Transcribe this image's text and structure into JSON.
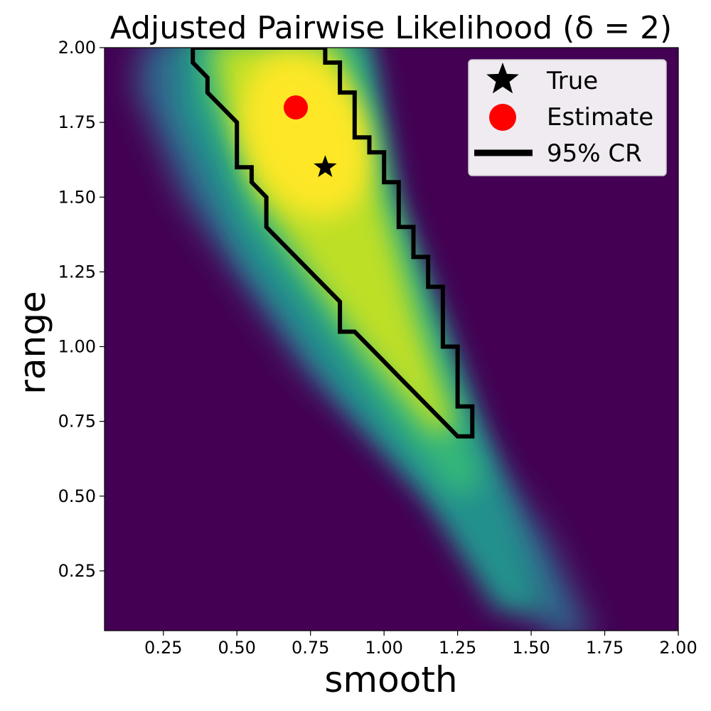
{
  "chart_data": {
    "type": "heatmap",
    "title": "Adjusted Pairwise Likelihood (δ = 2)",
    "xlabel": "smooth",
    "ylabel": "range",
    "xlim": [
      0.05,
      2.0
    ],
    "ylim": [
      0.05,
      2.0
    ],
    "xticks": [
      0.25,
      0.5,
      0.75,
      1.0,
      1.25,
      1.5,
      1.75,
      2.0
    ],
    "xtick_labels": [
      "0.25",
      "0.50",
      "0.75",
      "1.00",
      "1.25",
      "1.50",
      "1.75",
      "2.00"
    ],
    "yticks": [
      0.25,
      0.5,
      0.75,
      1.0,
      1.25,
      1.5,
      1.75,
      2.0
    ],
    "ytick_labels": [
      "0.25",
      "0.50",
      "0.75",
      "1.00",
      "1.25",
      "1.50",
      "1.75",
      "2.00"
    ],
    "colormap": "viridis",
    "background_color": "#440154",
    "true_point": {
      "label": "True",
      "x": 0.8,
      "y": 1.6,
      "marker": "star",
      "color": "#000000"
    },
    "estimate_point": {
      "label": "Estimate",
      "x": 0.7,
      "y": 1.8,
      "marker": "circle",
      "color": "#ff0000"
    },
    "credible_region": {
      "label": "95% CR",
      "color": "#000000",
      "polygon": [
        [
          0.45,
          2.0
        ],
        [
          0.8,
          2.0
        ],
        [
          0.8,
          1.95
        ],
        [
          0.85,
          1.95
        ],
        [
          0.85,
          1.85
        ],
        [
          0.9,
          1.85
        ],
        [
          0.9,
          1.7
        ],
        [
          0.95,
          1.7
        ],
        [
          0.95,
          1.65
        ],
        [
          1.0,
          1.65
        ],
        [
          1.0,
          1.55
        ],
        [
          1.05,
          1.55
        ],
        [
          1.05,
          1.4
        ],
        [
          1.1,
          1.4
        ],
        [
          1.1,
          1.3
        ],
        [
          1.15,
          1.3
        ],
        [
          1.15,
          1.2
        ],
        [
          1.2,
          1.2
        ],
        [
          1.2,
          1.0
        ],
        [
          1.25,
          1.0
        ],
        [
          1.25,
          0.8
        ],
        [
          1.3,
          0.8
        ],
        [
          1.3,
          0.7
        ],
        [
          1.25,
          0.7
        ],
        [
          1.2,
          0.75
        ],
        [
          1.15,
          0.8
        ],
        [
          1.1,
          0.85
        ],
        [
          1.05,
          0.9
        ],
        [
          1.0,
          0.95
        ],
        [
          0.95,
          1.0
        ],
        [
          0.9,
          1.05
        ],
        [
          0.85,
          1.05
        ],
        [
          0.85,
          1.15
        ],
        [
          0.8,
          1.2
        ],
        [
          0.75,
          1.25
        ],
        [
          0.7,
          1.3
        ],
        [
          0.65,
          1.35
        ],
        [
          0.6,
          1.4
        ],
        [
          0.6,
          1.5
        ],
        [
          0.55,
          1.55
        ],
        [
          0.55,
          1.6
        ],
        [
          0.5,
          1.6
        ],
        [
          0.5,
          1.75
        ],
        [
          0.45,
          1.8
        ],
        [
          0.4,
          1.85
        ],
        [
          0.4,
          1.9
        ],
        [
          0.35,
          1.95
        ],
        [
          0.35,
          2.0
        ]
      ]
    },
    "legend": {
      "placement": "top-right",
      "entries": [
        "True",
        "Estimate",
        "95% CR"
      ]
    },
    "grid": false
  }
}
